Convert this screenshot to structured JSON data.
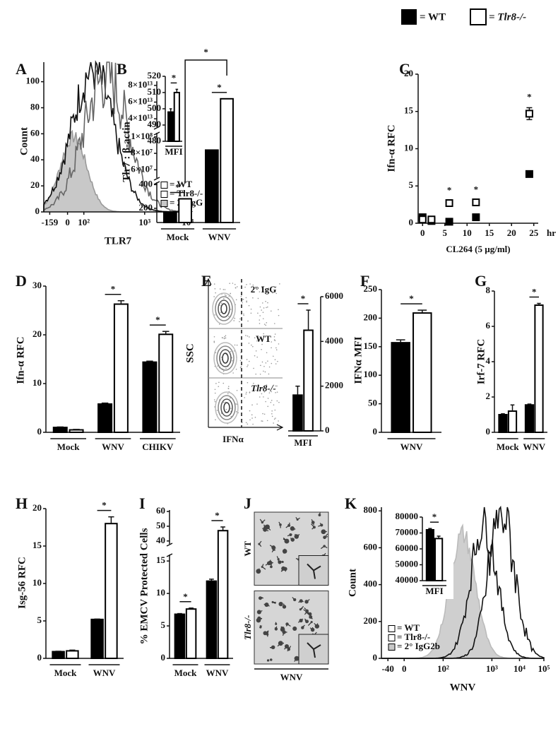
{
  "legend": {
    "items": [
      {
        "name": "= WT",
        "color": "#000000"
      },
      {
        "name": "= Tlr8-/-",
        "color": "#ffffff"
      }
    ]
  },
  "chart_data": [
    {
      "label": "A",
      "type": "histogram",
      "ylabel": "Count",
      "xlabel": "TLR7",
      "ylim": [
        0,
        115
      ],
      "yticks": [
        0,
        20,
        40,
        60,
        80,
        100
      ],
      "xtick_labels": [
        "-159",
        "0",
        "10²",
        "10³",
        "10⁴"
      ],
      "legend": [
        {
          "name": "= WT",
          "color": "#ffffff"
        },
        {
          "name": "= Tlr8-/-",
          "color": "#ffffff"
        },
        {
          "name": "= 2° IgG",
          "color": "#c8c8c8"
        }
      ],
      "inset": {
        "type": "bar",
        "categories": [
          null
        ],
        "xlabel": "MFI",
        "ylim": [
          480,
          520
        ],
        "yticks": [
          480,
          490,
          500,
          510,
          520
        ],
        "series": [
          {
            "color": "#000000",
            "values": [
              498
            ],
            "errors": [
              2
            ]
          },
          {
            "color": "#ffffff",
            "values": [
              510
            ],
            "errors": [
              2
            ]
          }
        ],
        "significance": [
          "*"
        ]
      }
    },
    {
      "label": "B",
      "type": "bar",
      "ylabel": "Tlr7 : β-actin",
      "categories": [
        "Mock",
        "WNV"
      ],
      "segments": [
        {
          "ylim": [
            80,
            420
          ],
          "yticks": [
            200,
            400
          ]
        },
        {
          "ylim": [
            50000000,
            105000000
          ],
          "yticks": [
            {
              "value": 60000000,
              "label": "6×10⁷"
            },
            {
              "value": 80000000,
              "label": "8×10⁷"
            },
            {
              "value": 100000000,
              "label": "1×10⁸"
            }
          ]
        },
        {
          "ylim": [
            30000000000000,
            85000000000000
          ],
          "yticks": [
            {
              "value": 40000000000000,
              "label": "4×10¹³"
            },
            {
              "value": 60000000000000,
              "label": "6×10¹³"
            },
            {
              "value": 80000000000000,
              "label": "8×10¹³"
            }
          ]
        }
      ],
      "series": [
        {
          "color": "#000000",
          "values": [
            170,
            84000000
          ]
        },
        {
          "color": "#ffffff",
          "values": [
            280,
            64000000000000
          ]
        }
      ],
      "significance": [
        "*",
        "*"
      ],
      "cross_significance": "*"
    },
    {
      "label": "C",
      "type": "line",
      "ylabel": "Ifn-α RFC",
      "xlabel": "CL264 (5 µg/ml)",
      "x_unit": "hr",
      "x": [
        0,
        2,
        6,
        12,
        24
      ],
      "xlim": [
        -1,
        26
      ],
      "xticks": [
        0,
        5,
        10,
        15,
        20,
        25
      ],
      "ylim": [
        0,
        20
      ],
      "yticks": [
        0,
        5,
        10,
        15,
        20
      ],
      "series": [
        {
          "color": "#000000",
          "filled": true,
          "values": [
            0.8,
            0.3,
            0.2,
            0.8,
            6.6
          ]
        },
        {
          "color": "#000000",
          "filled": false,
          "values": [
            0.5,
            0.5,
            2.7,
            2.8,
            14.7
          ],
          "errors": [
            0.4,
            null,
            0.3,
            0.3,
            0.8
          ]
        }
      ],
      "significance": [
        null,
        null,
        "*",
        "*",
        "*"
      ]
    },
    {
      "label": "D",
      "type": "bar",
      "ylabel": "Ifn-α RFC",
      "categories": [
        "Mock",
        "WNV",
        "CHIKV"
      ],
      "ylim": [
        0,
        30
      ],
      "yticks": [
        0,
        10,
        20,
        30
      ],
      "series": [
        {
          "color": "#000000",
          "values": [
            1.0,
            5.8,
            14.4
          ],
          "errors": [
            0.1,
            0.2,
            0.2
          ]
        },
        {
          "color": "#ffffff",
          "values": [
            0.5,
            26.3,
            20.1
          ],
          "errors": [
            0.1,
            0.7,
            0.6
          ]
        }
      ],
      "significance": [
        null,
        "*",
        "*"
      ]
    },
    {
      "label": "E",
      "type": "flow",
      "ylabel": "SSC",
      "xlabel": "IFNα",
      "gates": [
        "2° IgG",
        "WT",
        "Tlr8-/-"
      ],
      "inset": {
        "type": "bar",
        "categories": [
          null
        ],
        "xlabel": "MFI",
        "yaxis": "right",
        "ylim": [
          0,
          6000
        ],
        "yticks": [
          0,
          2000,
          4000,
          6000
        ],
        "series": [
          {
            "color": "#000000",
            "values": [
              1600
            ],
            "errors": [
              400
            ]
          },
          {
            "color": "#ffffff",
            "values": [
              4500
            ],
            "errors": [
              900
            ]
          }
        ],
        "significance": [
          "*"
        ]
      }
    },
    {
      "label": "F",
      "type": "bar",
      "ylabel": "IFNα MFI",
      "categories": [
        "WNV"
      ],
      "ylim": [
        0,
        250
      ],
      "yticks": [
        0,
        50,
        100,
        150,
        200,
        250
      ],
      "series": [
        {
          "color": "#000000",
          "values": [
            157
          ],
          "errors": [
            5
          ]
        },
        {
          "color": "#ffffff",
          "values": [
            209
          ],
          "errors": [
            5
          ]
        }
      ],
      "significance": [
        "*"
      ]
    },
    {
      "label": "G",
      "type": "bar",
      "ylabel": "Irf-7 RFC",
      "categories": [
        "Mock",
        "WNV"
      ],
      "ylim": [
        0,
        8
      ],
      "yticks": [
        0,
        2,
        4,
        6,
        8
      ],
      "series": [
        {
          "color": "#000000",
          "values": [
            1.0,
            1.55
          ],
          "errors": [
            0.05,
            0.05
          ]
        },
        {
          "color": "#ffffff",
          "values": [
            1.2,
            7.2
          ],
          "errors": [
            0.35,
            0.1
          ]
        }
      ],
      "significance": [
        null,
        "*"
      ]
    },
    {
      "label": "H",
      "type": "bar",
      "ylabel": "Isg-56 RFC",
      "categories": [
        "Mock",
        "WNV"
      ],
      "ylim": [
        0,
        20
      ],
      "yticks": [
        0,
        5,
        10,
        15,
        20
      ],
      "series": [
        {
          "color": "#000000",
          "values": [
            0.9,
            5.2
          ],
          "errors": [
            0.05,
            0.05
          ]
        },
        {
          "color": "#ffffff",
          "values": [
            1.0,
            18.0
          ],
          "errors": [
            0.1,
            0.9
          ]
        }
      ],
      "significance": [
        null,
        "*"
      ]
    },
    {
      "label": "I",
      "type": "bar",
      "ylabel": "% EMCV Protected Cells",
      "categories": [
        "Mock",
        "WNV"
      ],
      "segments": [
        {
          "ylim": [
            0,
            16
          ],
          "yticks": [
            0,
            5,
            10,
            15
          ]
        },
        {
          "ylim": [
            38,
            61
          ],
          "yticks": [
            40,
            50,
            60
          ]
        }
      ],
      "series": [
        {
          "color": "#000000",
          "values": [
            6.8,
            11.9
          ],
          "errors": [
            0.1,
            0.3
          ]
        },
        {
          "color": "#ffffff",
          "values": [
            7.6,
            47
          ],
          "errors": [
            0.15,
            2.5
          ]
        }
      ],
      "significance": [
        "*",
        "*"
      ]
    },
    {
      "label": "J",
      "type": "image",
      "rows": [
        "WT",
        "Tlr8-/-"
      ],
      "xlabel": "WNV"
    },
    {
      "label": "K",
      "type": "histogram",
      "ylabel": "Count",
      "xlabel": "WNV",
      "ylim": [
        0,
        820
      ],
      "yticks": [
        0,
        200,
        400,
        600,
        800
      ],
      "xtick_labels": [
        "-40",
        "0",
        "10²",
        "10³",
        "10⁴",
        "10⁵"
      ],
      "legend": [
        {
          "name": "= WT",
          "color": "#ffffff"
        },
        {
          "name": "= Tlr8-/-",
          "color": "#ffffff"
        },
        {
          "name": "= 2° IgG2b",
          "color": "#c8c8c8"
        }
      ],
      "inset": {
        "type": "bar",
        "categories": [
          null
        ],
        "xlabel": "MFI",
        "ylim": [
          40000,
          80000
        ],
        "yticks": [
          40000,
          50000,
          60000,
          70000,
          80000
        ],
        "series": [
          {
            "color": "#000000",
            "values": [
              72000
            ],
            "errors": [
              800
            ]
          },
          {
            "color": "#ffffff",
            "values": [
              66500
            ],
            "errors": [
              1500
            ]
          }
        ],
        "significance": [
          "*"
        ]
      }
    }
  ]
}
